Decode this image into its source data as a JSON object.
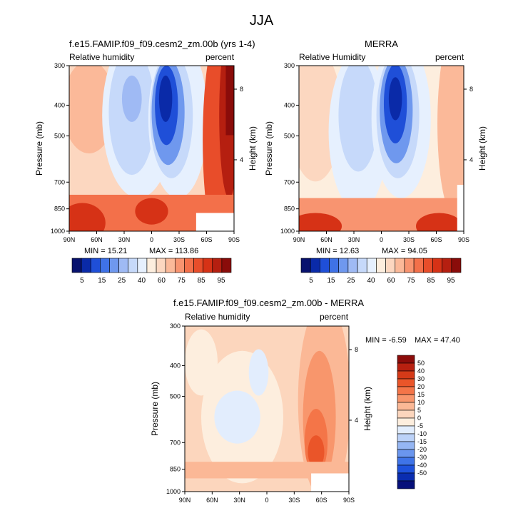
{
  "title": "JJA",
  "colors": {
    "neg": [
      "#08126e",
      "#0a2aa8",
      "#1f4fd8",
      "#3f72e6",
      "#6f98ee",
      "#9fbaf4",
      "#c6d9fa",
      "#e6f0fe"
    ],
    "pos": [
      "#fdeede",
      "#fcd7c0",
      "#fbb999",
      "#f89470",
      "#f3704a",
      "#e84d2a",
      "#d63216",
      "#b51f10",
      "#8a0c0a"
    ],
    "diff": [
      "#06107a",
      "#0a2db0",
      "#1e52dc",
      "#3f74e8",
      "#6a96ee",
      "#95b6f3",
      "#bcd2f8",
      "#e2edfd",
      "#fdeede",
      "#fcd6bd",
      "#fbb896",
      "#f8966c",
      "#f47548",
      "#ea5529",
      "#d53a18",
      "#b82010",
      "#8c0c0a"
    ]
  },
  "chart_data": [
    {
      "type": "heatmap",
      "title": "f.e15.FAMIP.f09_f09.cesm2_zm.00b (yrs 1-4)",
      "left_label": "Relative humidity",
      "right_label": "percent",
      "ylabel": "Pressure (mb)",
      "ylabel_right": "Height (km)",
      "yticks": [
        "300",
        "400",
        "500",
        "700",
        "850",
        "1000"
      ],
      "ytick_values": [
        300,
        400,
        500,
        700,
        850,
        1000
      ],
      "yticks_right": [
        "8",
        "4"
      ],
      "ytick_right_values": [
        356,
        595
      ],
      "xticks": [
        "90N",
        "60N",
        "30N",
        "0",
        "30S",
        "60S",
        "90S"
      ],
      "ylim": [
        1000,
        300
      ],
      "min_label": "MIN = 15.21",
      "max_label": "MAX = 113.86",
      "colorbar_labels": [
        "5",
        "15",
        "25",
        "40",
        "60",
        "75",
        "85",
        "95"
      ]
    },
    {
      "type": "heatmap",
      "title": "MERRA",
      "left_label": "Relative Humidity",
      "right_label": "percent",
      "ylabel": "Pressure (mb)",
      "ylabel_right": "Height (km)",
      "yticks": [
        "300",
        "400",
        "500",
        "700",
        "850",
        "1000"
      ],
      "ytick_values": [
        300,
        400,
        500,
        700,
        850,
        1000
      ],
      "yticks_right": [
        "8",
        "4"
      ],
      "ytick_right_values": [
        356,
        595
      ],
      "xticks": [
        "90N",
        "60N",
        "30N",
        "0",
        "30S",
        "60S",
        "90S"
      ],
      "ylim": [
        1000,
        300
      ],
      "min_label": "MIN = 12.63",
      "max_label": "MAX = 94.05",
      "colorbar_labels": [
        "5",
        "15",
        "25",
        "40",
        "60",
        "75",
        "85",
        "95"
      ]
    },
    {
      "type": "heatmap",
      "title": "f.e15.FAMIP.f09_f09.cesm2_zm.00b - MERRA",
      "left_label": "Relative humidity",
      "right_label": "percent",
      "ylabel": "Pressure (mb)",
      "ylabel_right": "Height (km)",
      "yticks": [
        "300",
        "400",
        "500",
        "700",
        "850",
        "1000"
      ],
      "ytick_values": [
        300,
        400,
        500,
        700,
        850,
        1000
      ],
      "yticks_right": [
        "8",
        "4"
      ],
      "ytick_right_values": [
        356,
        595
      ],
      "xticks": [
        "90N",
        "60N",
        "30N",
        "0",
        "30S",
        "60S",
        "90S"
      ],
      "ylim": [
        1000,
        300
      ],
      "min_label": "MIN = -6.59",
      "max_label": "MAX = 47.40",
      "colorbar_labels": [
        "50",
        "40",
        "30",
        "20",
        "15",
        "10",
        "5",
        "0",
        "-5",
        "-10",
        "-15",
        "-20",
        "-30",
        "-40",
        "-50"
      ]
    }
  ]
}
